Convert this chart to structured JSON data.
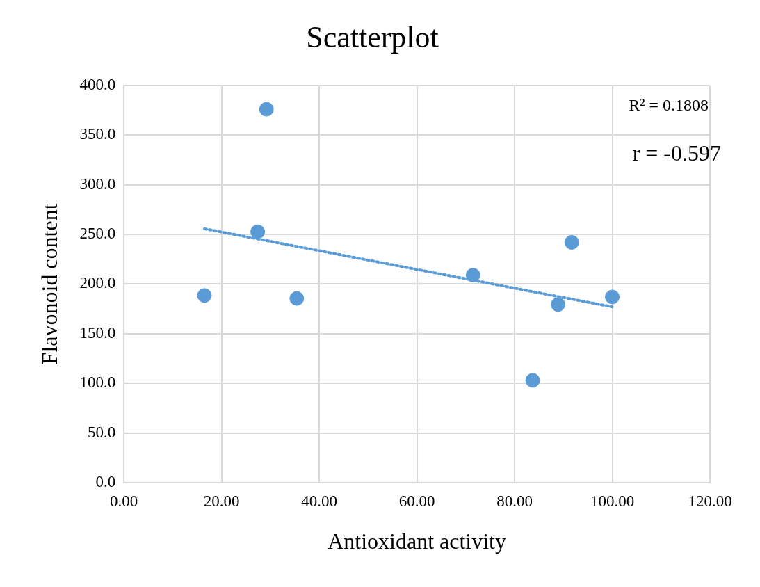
{
  "chart_data": {
    "type": "scatter",
    "title": "Scatterplot",
    "xlabel": "Antioxidant activity",
    "ylabel": "Flavonoid content",
    "xlim": [
      0,
      120
    ],
    "xticks": [
      {
        "value": 0,
        "label": "0.00"
      },
      {
        "value": 20,
        "label": "20.00"
      },
      {
        "value": 40,
        "label": "40.00"
      },
      {
        "value": 60,
        "label": "60.00"
      },
      {
        "value": 80,
        "label": "80.00"
      },
      {
        "value": 100,
        "label": "100.00"
      },
      {
        "value": 120,
        "label": "120.00"
      }
    ],
    "ylim": [
      0,
      400
    ],
    "yticks": [
      {
        "value": 0,
        "label": "0.0"
      },
      {
        "value": 50,
        "label": "50.0"
      },
      {
        "value": 100,
        "label": "100.0"
      },
      {
        "value": 150,
        "label": "150.0"
      },
      {
        "value": 200,
        "label": "200.0"
      },
      {
        "value": 250,
        "label": "250.0"
      },
      {
        "value": 300,
        "label": "300.0"
      },
      {
        "value": 350,
        "label": "350.0"
      },
      {
        "value": 400,
        "label": "400.0"
      }
    ],
    "grid": true,
    "series": [
      {
        "type": "scatter",
        "color": "#5b9bd5",
        "marker": "circle",
        "x": [
          16.5,
          29.2,
          27.4,
          35.4,
          71.5,
          83.7,
          88.9,
          91.7,
          100
        ],
        "values": [
          188.5,
          376,
          252.7,
          185.5,
          209,
          103,
          179.4,
          242,
          187
        ]
      },
      {
        "type": "line",
        "color": "#5b9bd5",
        "marker": "none",
        "line_style": "dotted",
        "x": [
          16.5,
          100
        ],
        "values": [
          255.7,
          177
        ]
      }
    ],
    "annotations": [
      "R² = 0.1808",
      "r = -0.597"
    ]
  }
}
